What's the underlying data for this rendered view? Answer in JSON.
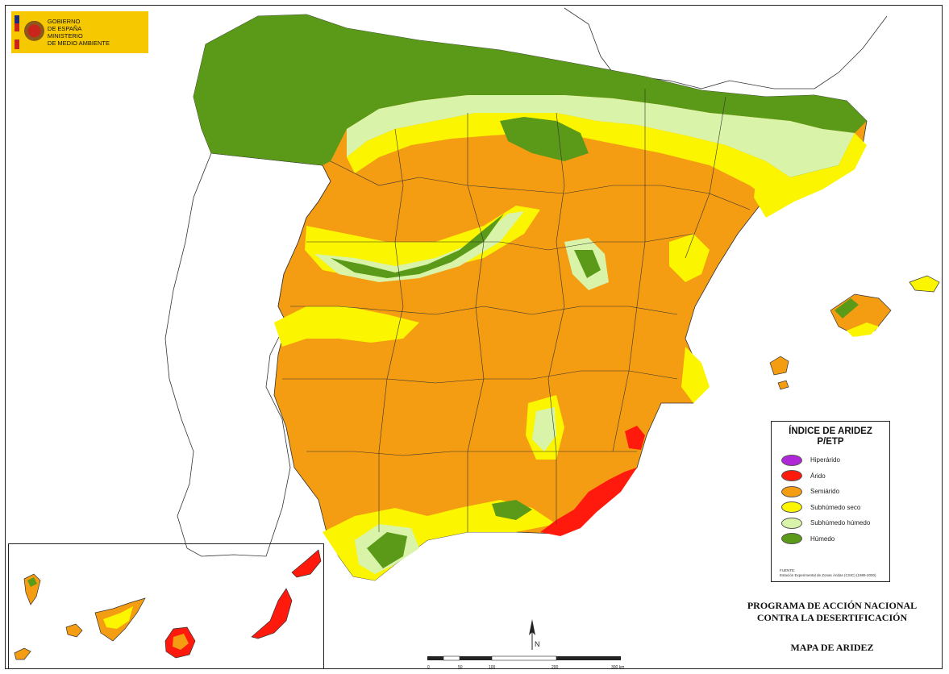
{
  "logo": {
    "line1": "GOBIERNO",
    "line2": "DE ESPAÑA",
    "line3": "MINISTERIO",
    "line4": "DE MEDIO AMBIENTE"
  },
  "legend": {
    "title_line1": "ÍNDICE DE ARIDEZ",
    "title_line2": "P/ETP",
    "items": [
      {
        "label": "Hiperárido",
        "color": "#b027d8"
      },
      {
        "label": "Árido",
        "color": "#ff1a0d"
      },
      {
        "label": "Semiárido",
        "color": "#f49c12"
      },
      {
        "label": "Subhúmedo seco",
        "color": "#fbf500"
      },
      {
        "label": "Subhúmedo húmedo",
        "color": "#d9f4a8"
      },
      {
        "label": "Húmedo",
        "color": "#5a9a18"
      }
    ],
    "source_line1": "FUENTE:",
    "source_line2": "Estación Experimental de Zonas Áridas (CSIC) (1989-2000)"
  },
  "program": {
    "line1": "PROGRAMA DE ACCIÓN NACIONAL",
    "line2": "CONTRA LA DESERTIFICACIÓN"
  },
  "map_title": "MAPA DE ARIDEZ",
  "north_label": "N",
  "scale": {
    "ticks": [
      "0",
      "50",
      "100",
      "200",
      "300 km"
    ]
  },
  "colors": {
    "semiarido": "#f49c12",
    "subhumedo_seco": "#fbf500",
    "subhumedo_humedo": "#d9f4a8",
    "humedo": "#5a9a18",
    "arido": "#ff1a0d"
  }
}
